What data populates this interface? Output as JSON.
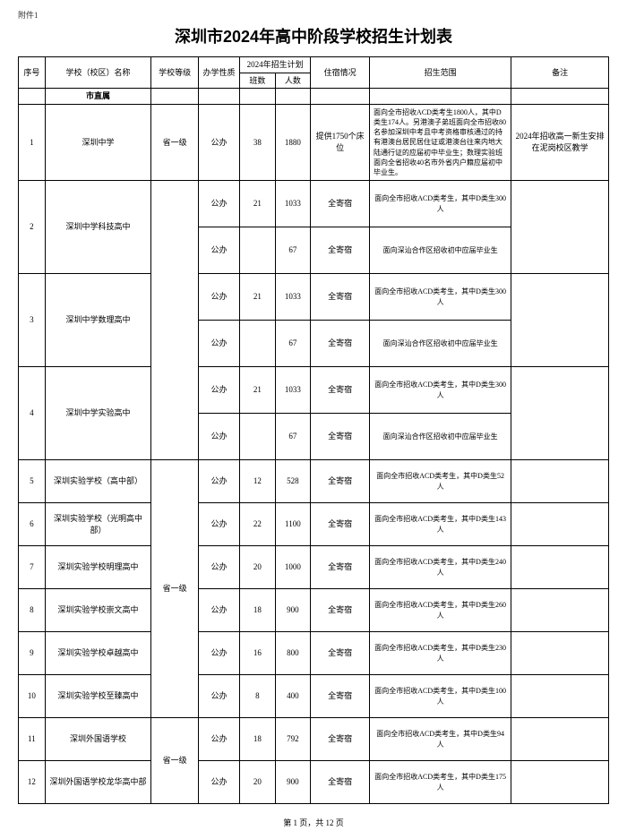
{
  "attachment_label": "附件1",
  "title": "深圳市2024年高中阶段学校招生计划表",
  "footer": "第 1 页，共 12 页",
  "headers": {
    "seq": "序号",
    "school": "学校（校区）名称",
    "level": "学校等级",
    "nature": "办学性质",
    "plan_group": "2024年招生计划",
    "classes": "班数",
    "people": "人数",
    "dorm": "住宿情况",
    "scope": "招生范围",
    "remark": "备注"
  },
  "category_row": "市直属",
  "level_group1": "省一级",
  "level_group2": "省一级",
  "level_group3": "省一级",
  "rows": {
    "r1": {
      "seq": "1",
      "name": "深圳中学",
      "nature": "公办",
      "cls": "38",
      "ppl": "1880",
      "dorm": "提供1750个床位",
      "scope": "面向全市招收ACD类考生1800人，其中D类生174人。另港澳子弟班面向全市招收80名参加深圳中考且中考资格审核通过的持有港澳台居民居住证或港澳台往来内地大陆通行证的应届初中毕业生；数理实验班面向全省招收40名市外省内户籍应届初中毕业生。",
      "note": "2024年招收高一新生安排在泥岗校区教学"
    },
    "r2a": {
      "seq": "2",
      "name": "深圳中学科技高中",
      "nature": "公办",
      "cls": "21",
      "ppl": "1033",
      "dorm": "全寄宿",
      "scope": "面向全市招收ACD类考生，其中D类生300人"
    },
    "r2b": {
      "nature": "公办",
      "cls": "",
      "ppl": "67",
      "dorm": "全寄宿",
      "scope": "面向深汕合作区招收初中应届毕业生"
    },
    "r3a": {
      "seq": "3",
      "name": "深圳中学数理高中",
      "nature": "公办",
      "cls": "21",
      "ppl": "1033",
      "dorm": "全寄宿",
      "scope": "面向全市招收ACD类考生，其中D类生300人"
    },
    "r3b": {
      "nature": "公办",
      "cls": "",
      "ppl": "67",
      "dorm": "全寄宿",
      "scope": "面向深汕合作区招收初中应届毕业生"
    },
    "r4a": {
      "seq": "4",
      "name": "深圳中学实验高中",
      "nature": "公办",
      "cls": "21",
      "ppl": "1033",
      "dorm": "全寄宿",
      "scope": "面向全市招收ACD类考生，其中D类生300人"
    },
    "r4b": {
      "nature": "公办",
      "cls": "",
      "ppl": "67",
      "dorm": "全寄宿",
      "scope": "面向深汕合作区招收初中应届毕业生"
    },
    "r5": {
      "seq": "5",
      "name": "深圳实验学校（高中部）",
      "nature": "公办",
      "cls": "12",
      "ppl": "528",
      "dorm": "全寄宿",
      "scope": "面向全市招收ACD类考生，其中D类生52人"
    },
    "r6": {
      "seq": "6",
      "name": "深圳实验学校（光明高中部）",
      "nature": "公办",
      "cls": "22",
      "ppl": "1100",
      "dorm": "全寄宿",
      "scope": "面向全市招收ACD类考生，其中D类生143人"
    },
    "r7": {
      "seq": "7",
      "name": "深圳实验学校明理高中",
      "nature": "公办",
      "cls": "20",
      "ppl": "1000",
      "dorm": "全寄宿",
      "scope": "面向全市招收ACD类考生，其中D类生240人"
    },
    "r8": {
      "seq": "8",
      "name": "深圳实验学校崇文高中",
      "nature": "公办",
      "cls": "18",
      "ppl": "900",
      "dorm": "全寄宿",
      "scope": "面向全市招收ACD类考生，其中D类生260人"
    },
    "r9": {
      "seq": "9",
      "name": "深圳实验学校卓越高中",
      "nature": "公办",
      "cls": "16",
      "ppl": "800",
      "dorm": "全寄宿",
      "scope": "面向全市招收ACD类考生，其中D类生230人"
    },
    "r10": {
      "seq": "10",
      "name": "深圳实验学校至臻高中",
      "nature": "公办",
      "cls": "8",
      "ppl": "400",
      "dorm": "全寄宿",
      "scope": "面向全市招收ACD类考生，其中D类生100人"
    },
    "r11": {
      "seq": "11",
      "name": "深圳外国语学校",
      "nature": "公办",
      "cls": "18",
      "ppl": "792",
      "dorm": "全寄宿",
      "scope": "面向全市招收ACD类考生，其中D类生94人"
    },
    "r12": {
      "seq": "12",
      "name": "深圳外国语学校龙华高中部",
      "nature": "公办",
      "cls": "20",
      "ppl": "900",
      "dorm": "全寄宿",
      "scope": "面向全市招收ACD类考生，其中D类生175人"
    }
  }
}
